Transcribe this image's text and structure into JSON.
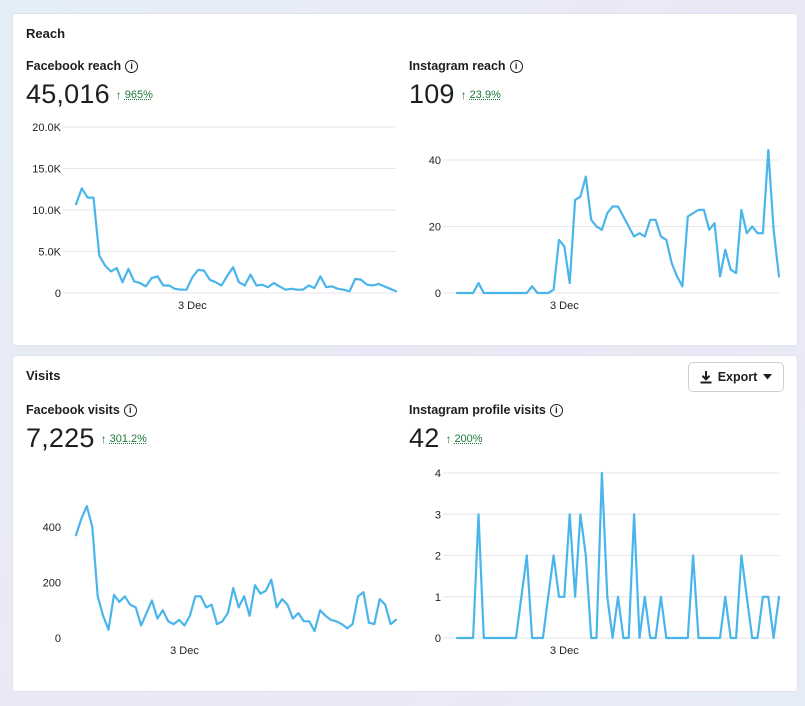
{
  "reach": {
    "section_title": "Reach",
    "panels": [
      {
        "title": "Facebook reach",
        "metric": "45,016",
        "trend_arrow": "↑",
        "trend_pct": "965%",
        "chart_data": {
          "type": "line",
          "ylim": [
            0,
            20000
          ],
          "y_ticks": [
            "0",
            "5.0K",
            "10.0K",
            "15.0K",
            "20.0K"
          ],
          "x_label": "3 Dec",
          "x_label_index": 20,
          "grid": true,
          "series": [
            {
              "values": [
                10700,
                12600,
                11500,
                11500,
                4500,
                3300,
                2600,
                3000,
                1300,
                2900,
                1400,
                1200,
                800,
                1800,
                2000,
                900,
                900,
                500,
                400,
                400,
                1900,
                2800,
                2700,
                1600,
                1300,
                900,
                2100,
                3100,
                1300,
                900,
                2200,
                900,
                1000,
                700,
                1200,
                800,
                400,
                500,
                400,
                400,
                900,
                600,
                2000,
                700,
                800,
                500,
                400,
                200,
                1700,
                1600,
                1000,
                900,
                1100,
                800,
                500,
                200
              ]
            }
          ]
        }
      },
      {
        "title": "Instagram reach",
        "metric": "109",
        "trend_arrow": "↑",
        "trend_pct": "23.9%",
        "chart_data": {
          "type": "line",
          "ylim": [
            0,
            40
          ],
          "y_ticks": [
            "0",
            "20",
            "40"
          ],
          "x_label": "3 Dec",
          "x_label_index": 20,
          "grid": true,
          "series": [
            {
              "values": [
                0,
                0,
                0,
                0,
                3,
                0,
                0,
                0,
                0,
                0,
                0,
                0,
                0,
                0,
                2,
                0,
                0,
                0,
                1,
                16,
                14,
                3,
                28,
                29,
                35,
                22,
                20,
                19,
                24,
                26,
                26,
                23,
                20,
                17,
                18,
                17,
                22,
                22,
                17,
                16,
                9,
                5,
                2,
                23,
                24,
                25,
                25,
                19,
                21,
                5,
                13,
                7,
                6,
                25,
                18,
                20,
                18,
                18,
                43,
                19,
                5
              ]
            }
          ]
        }
      }
    ]
  },
  "visits": {
    "section_title": "Visits",
    "export_label": "Export",
    "panels": [
      {
        "title": "Facebook visits",
        "metric": "7,225",
        "trend_arrow": "↑",
        "trend_pct": "301.2%",
        "chart_data": {
          "type": "line",
          "ylim": [
            0,
            450
          ],
          "y_ticks": [
            "0",
            "200",
            "400"
          ],
          "x_label": "3 Dec",
          "x_label_index": 20,
          "grid": false,
          "series": [
            {
              "values": [
                370,
                430,
                475,
                400,
                150,
                80,
                30,
                155,
                130,
                150,
                120,
                110,
                45,
                90,
                135,
                70,
                100,
                60,
                50,
                65,
                45,
                80,
                150,
                150,
                110,
                120,
                50,
                60,
                90,
                180,
                110,
                150,
                80,
                190,
                160,
                170,
                210,
                110,
                140,
                120,
                70,
                90,
                60,
                60,
                25,
                100,
                80,
                65,
                60,
                50,
                35,
                50,
                150,
                165,
                55,
                50,
                140,
                120,
                50,
                65
              ]
            }
          ]
        }
      },
      {
        "title": "Instagram profile visits",
        "metric": "42",
        "trend_arrow": "↑",
        "trend_pct": "200%",
        "chart_data": {
          "type": "line",
          "ylim": [
            0,
            4
          ],
          "y_ticks": [
            "0",
            "1",
            "2",
            "3",
            "4"
          ],
          "x_label": "3 Dec",
          "x_label_index": 20,
          "grid": true,
          "series": [
            {
              "values": [
                0,
                0,
                0,
                0,
                3,
                0,
                0,
                0,
                0,
                0,
                0,
                0,
                1,
                2,
                0,
                0,
                0,
                1,
                2,
                1,
                1,
                3,
                1,
                3,
                2,
                0,
                0,
                4,
                1,
                0,
                1,
                0,
                0,
                3,
                0,
                1,
                0,
                0,
                1,
                0,
                0,
                0,
                0,
                0,
                2,
                0,
                0,
                0,
                0,
                0,
                1,
                0,
                0,
                2,
                1,
                0,
                0,
                1,
                1,
                0,
                1
              ]
            }
          ]
        }
      }
    ]
  },
  "icons": {
    "info": "info-icon",
    "download": "download-icon",
    "caret": "caret-down-icon"
  },
  "colors": {
    "line": "#4ab5eb",
    "trend_up": "#1b7a3a",
    "grid": "#e4e6eb"
  }
}
